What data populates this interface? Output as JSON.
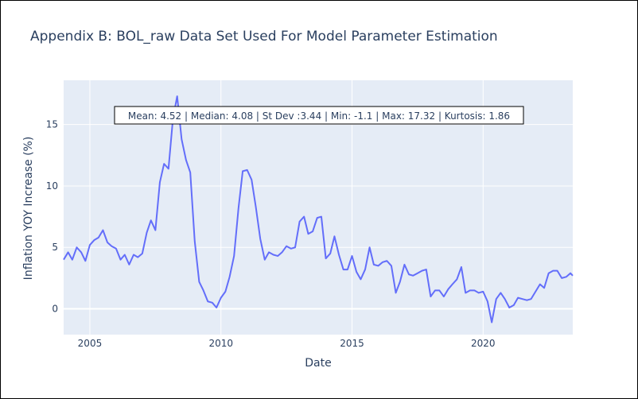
{
  "chart_data": {
    "type": "line",
    "title": "Appendix B: BOL_raw Data Set Used For Model Parameter Estimation",
    "xlabel": "Date",
    "ylabel": "Inflation YOY Increase (%)",
    "annotation": "Mean: 4.52 | Median: 4.08 | St Dev :3.44 | Min: -1.1 | Max: 17.32 | Kurtosis: 1.86",
    "xlim": [
      2004.0,
      2023.42
    ],
    "ylim": [
      -2.1,
      18.6
    ],
    "x_ticks": [
      2005,
      2010,
      2015,
      2020
    ],
    "x_tick_labels": [
      "2005",
      "2010",
      "2015",
      "2020"
    ],
    "y_ticks": [
      0,
      5,
      10,
      15
    ],
    "y_tick_labels": [
      "0",
      "5",
      "10",
      "15"
    ],
    "grid": true,
    "legend": "none",
    "colors": {
      "line": "#636efa",
      "plot_bg": "#e5ecf6",
      "grid": "#ffffff",
      "text": "#2a3f5f"
    },
    "series": [
      {
        "x": [
          2004.0,
          2004.17,
          2004.33,
          2004.5,
          2004.67,
          2004.83,
          2005.0,
          2005.17,
          2005.33,
          2005.5,
          2005.67,
          2005.83,
          2006.0,
          2006.17,
          2006.33,
          2006.5,
          2006.67,
          2006.83,
          2007.0,
          2007.17,
          2007.33,
          2007.5,
          2007.67,
          2007.83,
          2008.0,
          2008.17,
          2008.33,
          2008.5,
          2008.67,
          2008.83,
          2009.0,
          2009.17,
          2009.33,
          2009.5,
          2009.67,
          2009.83,
          2010.0,
          2010.17,
          2010.33,
          2010.5,
          2010.67,
          2010.83,
          2011.0,
          2011.17,
          2011.33,
          2011.5,
          2011.67,
          2011.83,
          2012.0,
          2012.17,
          2012.33,
          2012.5,
          2012.67,
          2012.83,
          2013.0,
          2013.17,
          2013.33,
          2013.5,
          2013.67,
          2013.83,
          2014.0,
          2014.17,
          2014.33,
          2014.5,
          2014.67,
          2014.83,
          2015.0,
          2015.17,
          2015.33,
          2015.5,
          2015.67,
          2015.83,
          2016.0,
          2016.17,
          2016.33,
          2016.5,
          2016.67,
          2016.83,
          2017.0,
          2017.17,
          2017.33,
          2017.5,
          2017.67,
          2017.83,
          2018.0,
          2018.17,
          2018.33,
          2018.5,
          2018.67,
          2018.83,
          2019.0,
          2019.17,
          2019.33,
          2019.5,
          2019.67,
          2019.83,
          2020.0,
          2020.17,
          2020.33,
          2020.5,
          2020.67,
          2020.83,
          2021.0,
          2021.17,
          2021.33,
          2021.5,
          2021.67,
          2021.83,
          2022.0,
          2022.17,
          2022.33,
          2022.5,
          2022.67,
          2022.83,
          2023.0,
          2023.17,
          2023.33,
          2023.42
        ],
        "y": [
          4.0,
          4.6,
          4.0,
          5.0,
          4.6,
          3.9,
          5.2,
          5.6,
          5.8,
          6.4,
          5.4,
          5.1,
          4.9,
          4.0,
          4.4,
          3.6,
          4.4,
          4.2,
          4.5,
          6.2,
          7.2,
          6.4,
          10.3,
          11.8,
          11.4,
          15.5,
          17.3,
          13.8,
          12.1,
          11.1,
          5.5,
          2.2,
          1.5,
          0.6,
          0.5,
          0.1,
          0.9,
          1.4,
          2.6,
          4.3,
          8.2,
          11.2,
          11.3,
          10.5,
          8.3,
          5.7,
          4.0,
          4.6,
          4.4,
          4.3,
          4.6,
          5.1,
          4.9,
          5.0,
          7.1,
          7.5,
          6.1,
          6.3,
          7.4,
          7.5,
          4.1,
          4.5,
          5.9,
          4.4,
          3.2,
          3.2,
          4.3,
          3.0,
          2.4,
          3.2,
          5.0,
          3.6,
          3.5,
          3.8,
          3.9,
          3.5,
          1.3,
          2.2,
          3.6,
          2.8,
          2.7,
          2.9,
          3.1,
          3.2,
          1.0,
          1.5,
          1.5,
          1.0,
          1.6,
          2.0,
          2.4,
          3.4,
          1.3,
          1.5,
          1.5,
          1.3,
          1.4,
          0.6,
          -1.1,
          0.8,
          1.3,
          0.8,
          0.1,
          0.3,
          0.9,
          0.8,
          0.7,
          0.8,
          1.4,
          2.0,
          1.7,
          2.9,
          3.1,
          3.1,
          2.5,
          2.6,
          2.9,
          2.7
        ]
      }
    ]
  }
}
